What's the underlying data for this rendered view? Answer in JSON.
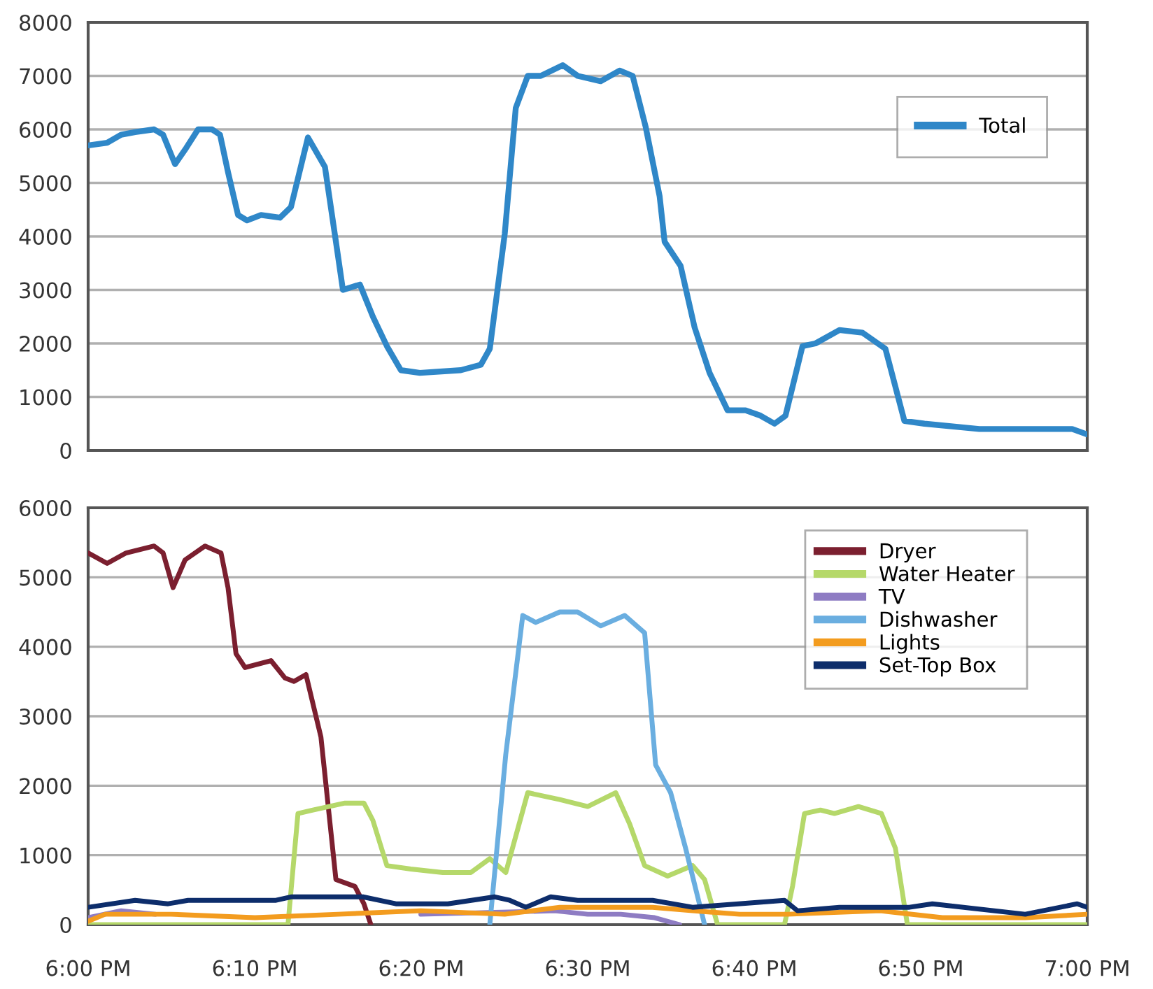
{
  "chart_data": [
    {
      "type": "line",
      "xlim": [
        18,
        19
      ],
      "ylim": [
        0,
        8000
      ],
      "yticks": [
        0,
        1000,
        2000,
        3000,
        4000,
        5000,
        6000,
        7000,
        8000
      ],
      "grid": "y",
      "legend": "top right",
      "tick_labels": "y",
      "marker": "none",
      "line_style": "solid",
      "series": [
        {
          "name": "Total",
          "color": "#2f87c8",
          "x": [
            18,
            18.019,
            18.033,
            18.047,
            18.066,
            18.075,
            18.087,
            18.098,
            18.11,
            18.124,
            18.132,
            18.14,
            18.15,
            18.159,
            18.173,
            18.192,
            18.203,
            18.22,
            18.237,
            18.248,
            18.255,
            18.272,
            18.285,
            18.299,
            18.313,
            18.332,
            18.373,
            18.393,
            18.402,
            18.417,
            18.428,
            18.44,
            18.453,
            18.475,
            18.49,
            18.513,
            18.532,
            18.545,
            18.558,
            18.572,
            18.577,
            18.593,
            18.607,
            18.622,
            18.64,
            18.658,
            18.673,
            18.687,
            18.698,
            18.715,
            18.728,
            18.752,
            18.775,
            18.798,
            18.817,
            18.837,
            18.892,
            18.938,
            18.962,
            18.985,
            19
          ],
          "values": [
            5700,
            5750,
            5900,
            5950,
            6000,
            5900,
            5350,
            5650,
            6000,
            6000,
            5900,
            5200,
            4400,
            4300,
            4400,
            4350,
            4550,
            5850,
            5300,
            3900,
            3000,
            3100,
            2500,
            1950,
            1500,
            1450,
            1500,
            1600,
            1900,
            4050,
            6400,
            7000,
            7000,
            7200,
            7000,
            6900,
            7100,
            7000,
            6050,
            4750,
            3900,
            3450,
            2300,
            1450,
            750,
            750,
            650,
            500,
            650,
            1950,
            2000,
            2250,
            2200,
            1900,
            550,
            500,
            400,
            400,
            400,
            400,
            300
          ]
        }
      ]
    },
    {
      "type": "line",
      "xlim": [
        18,
        19
      ],
      "ylim": [
        0,
        6000
      ],
      "yticks": [
        0,
        1000,
        2000,
        3000,
        4000,
        5000,
        6000
      ],
      "xticks": [
        {
          "value": 18,
          "label": "6:00 PM"
        },
        {
          "value": 18.1667,
          "label": "6:10 PM"
        },
        {
          "value": 18.3333,
          "label": "6:20 PM"
        },
        {
          "value": 18.5,
          "label": "6:30 PM"
        },
        {
          "value": 18.6667,
          "label": "6:40 PM"
        },
        {
          "value": 18.8333,
          "label": "6:50 PM"
        },
        {
          "value": 19,
          "label": "7:00 PM"
        }
      ],
      "grid": "y",
      "legend": "top right",
      "marker": "none",
      "line_style": "solid",
      "series": [
        {
          "name": "Dryer",
          "color": "#7b1f2f",
          "x": [
            18,
            18.019,
            18.038,
            18.052,
            18.066,
            18.075,
            18.085,
            18.097,
            18.117,
            18.133,
            18.14,
            18.148,
            18.157,
            18.183,
            18.197,
            18.206,
            18.218,
            18.233,
            18.248,
            18.267,
            18.276,
            18.283
          ],
          "values": [
            5350,
            5200,
            5350,
            5400,
            5450,
            5350,
            4850,
            5250,
            5450,
            5350,
            4850,
            3900,
            3700,
            3800,
            3550,
            3500,
            3600,
            2700,
            650,
            550,
            300,
            0
          ]
        },
        {
          "name": "Water Heater",
          "color": "#b5d86a",
          "x": [
            18,
            18.2,
            18.21,
            18.225,
            18.257,
            18.276,
            18.285,
            18.299,
            18.323,
            18.355,
            18.383,
            18.402,
            18.418,
            18.44,
            18.472,
            18.5,
            18.528,
            18.542,
            18.557,
            18.58,
            18.605,
            18.617,
            18.63,
            18.697,
            18.705,
            18.717,
            18.733,
            18.747,
            18.771,
            18.794,
            18.808,
            18.82,
            19
          ],
          "values": [
            0,
            0,
            1600,
            1650,
            1750,
            1750,
            1500,
            850,
            800,
            750,
            750,
            950,
            750,
            1900,
            1800,
            1700,
            1900,
            1450,
            850,
            700,
            850,
            650,
            0,
            0,
            550,
            1600,
            1650,
            1600,
            1700,
            1600,
            1100,
            0,
            0
          ]
        },
        {
          "name": "TV",
          "color": "#8e7cc3",
          "x": [
            18,
            18.033,
            18.067,
            18.167,
            18.333,
            18.467,
            18.5,
            18.533,
            18.567,
            18.592
          ],
          "values": [
            100,
            200,
            150,
            null,
            150,
            200,
            150,
            150,
            100,
            0
          ]
        },
        {
          "name": "Dishwasher",
          "color": "#6aaee0",
          "x": [
            18.402,
            18.418,
            18.435,
            18.448,
            18.472,
            18.49,
            18.513,
            18.537,
            18.557,
            18.568,
            18.583,
            18.598,
            18.617
          ],
          "values": [
            0,
            2450,
            4450,
            4350,
            4500,
            4500,
            4300,
            4450,
            4200,
            2300,
            1900,
            1100,
            0
          ]
        },
        {
          "name": "Lights",
          "color": "#f39c1f",
          "x": [
            18,
            18.017,
            18.083,
            18.167,
            18.25,
            18.333,
            18.417,
            18.472,
            18.565,
            18.605,
            18.652,
            18.7,
            18.793,
            18.855,
            18.938,
            19
          ],
          "values": [
            50,
            150,
            150,
            100,
            150,
            200,
            150,
            250,
            250,
            200,
            150,
            150,
            200,
            100,
            100,
            150
          ]
        },
        {
          "name": "Set-Top Box",
          "color": "#0d2d6b",
          "x": [
            18,
            18.047,
            18.08,
            18.1,
            18.188,
            18.203,
            18.24,
            18.275,
            18.308,
            18.36,
            18.407,
            18.422,
            18.438,
            18.463,
            18.49,
            18.532,
            18.565,
            18.605,
            18.697,
            18.71,
            18.752,
            18.822,
            18.845,
            18.938,
            18.99,
            19
          ],
          "values": [
            250,
            350,
            300,
            350,
            350,
            400,
            400,
            400,
            300,
            300,
            400,
            350,
            250,
            400,
            350,
            350,
            350,
            250,
            350,
            200,
            250,
            250,
            300,
            150,
            300,
            250
          ]
        }
      ]
    }
  ]
}
